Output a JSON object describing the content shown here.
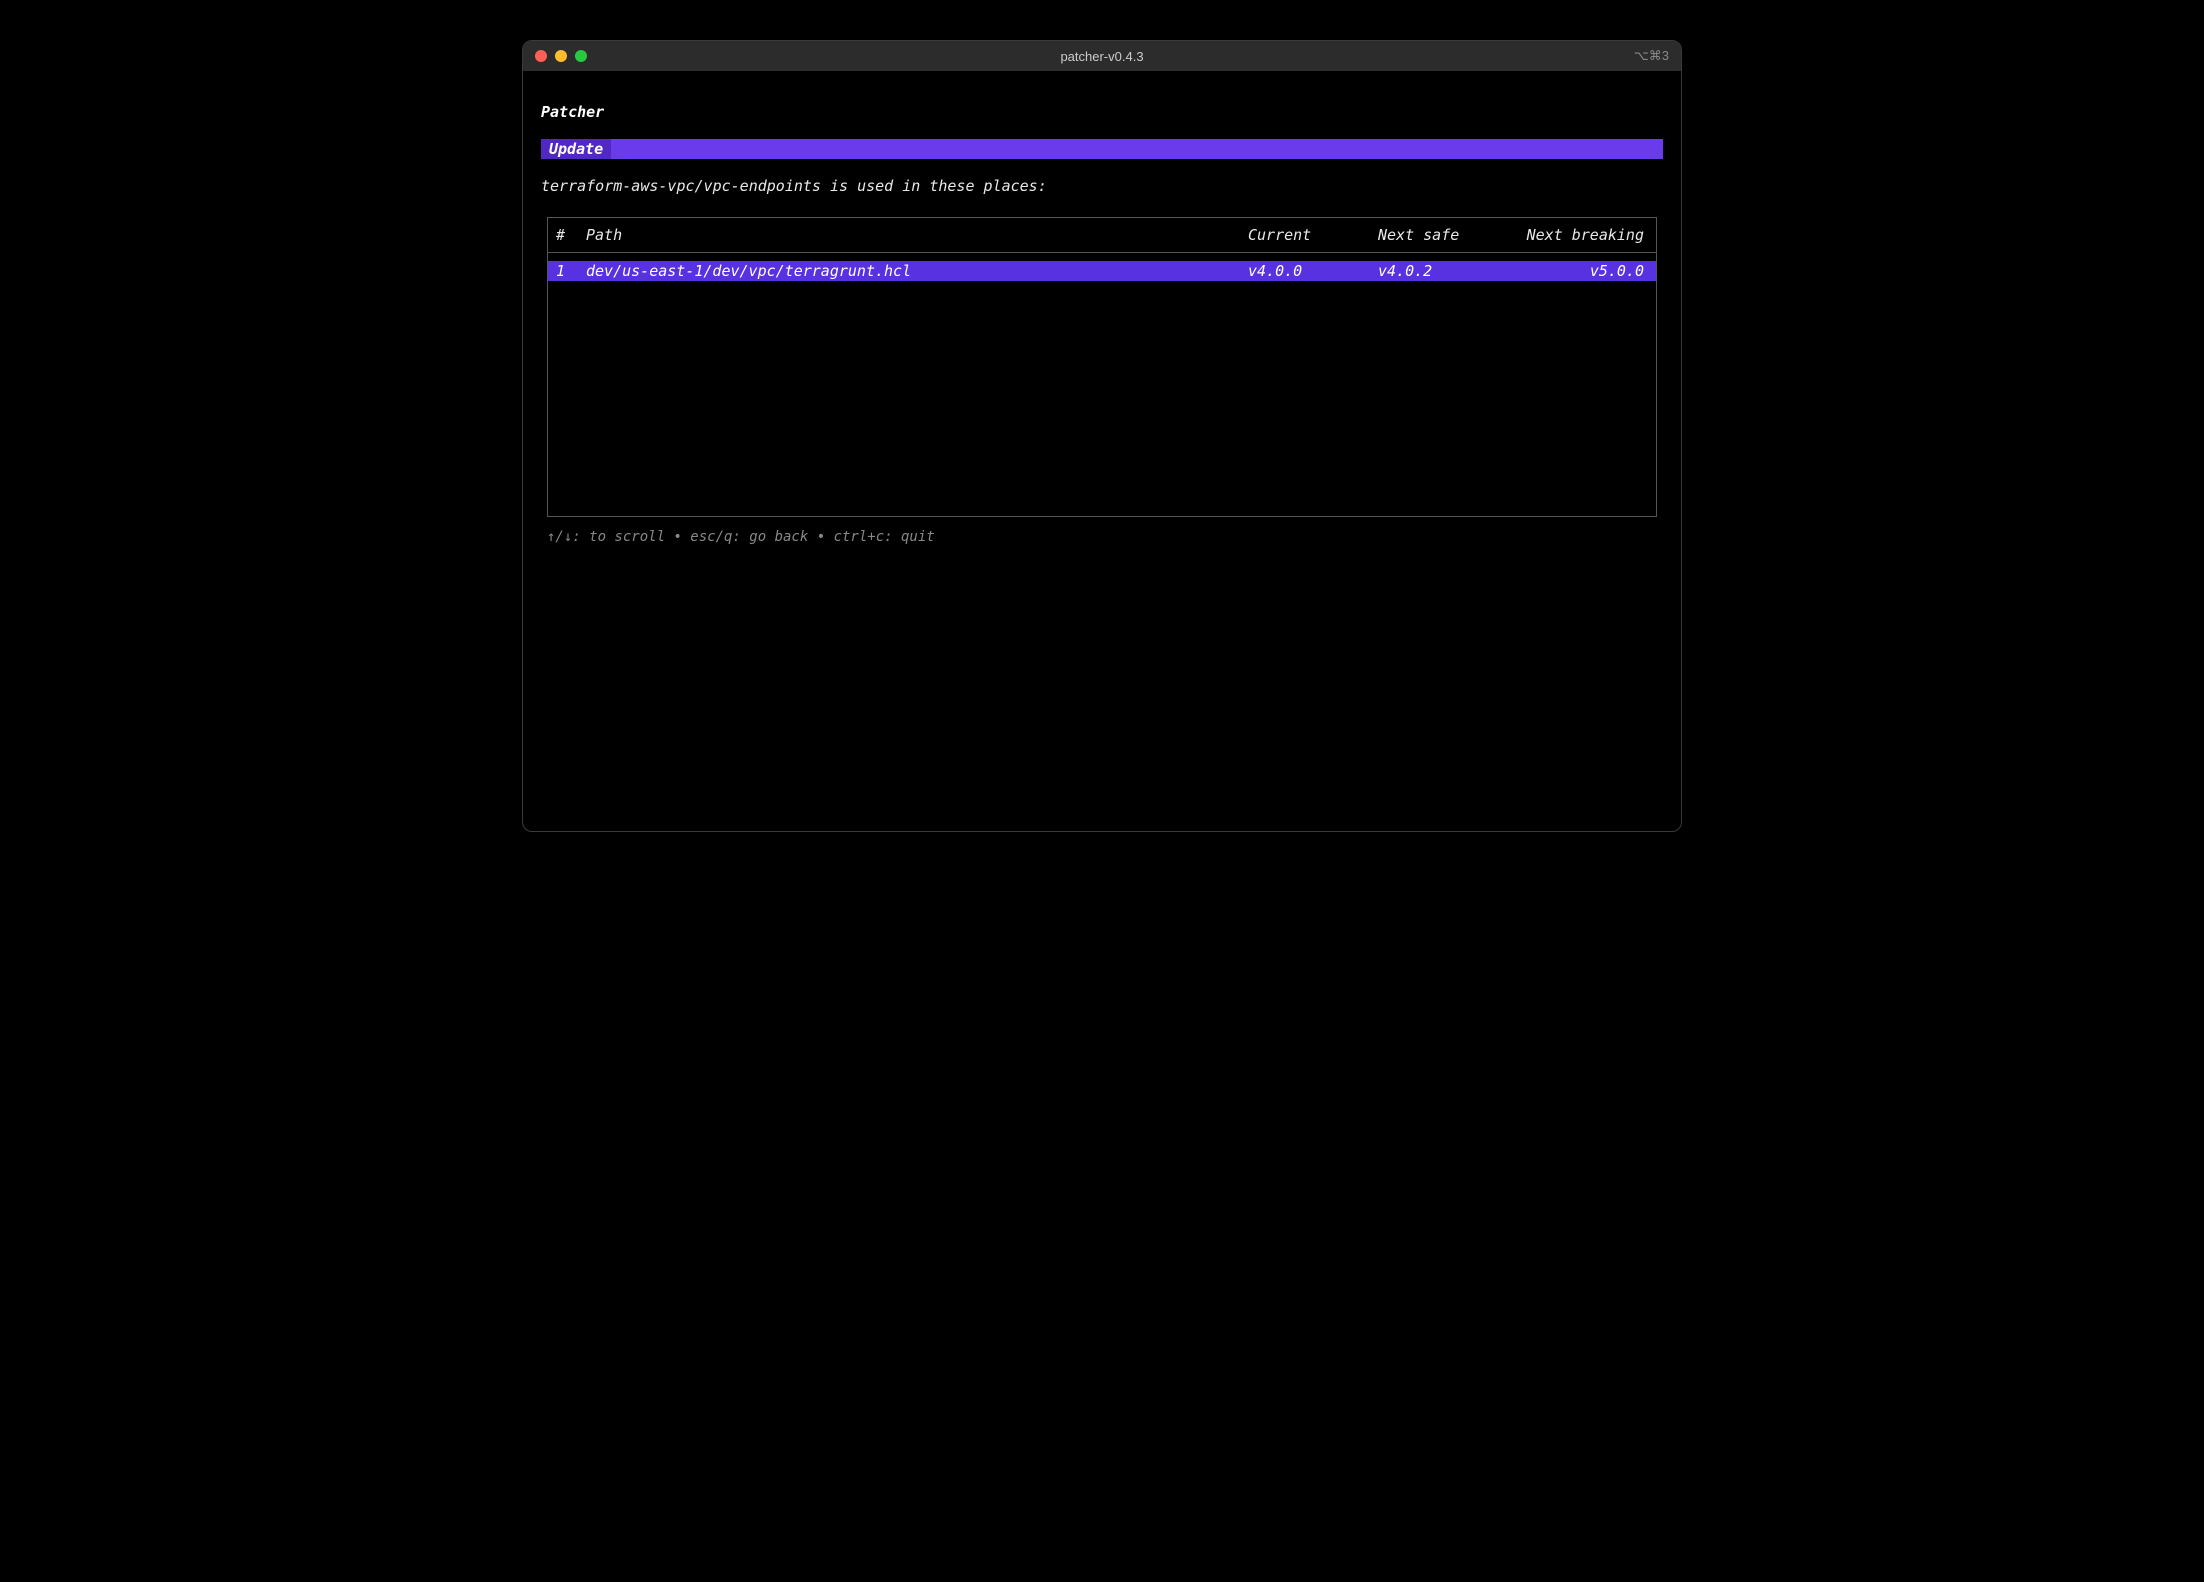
{
  "window": {
    "title": "patcher-v0.4.3",
    "titlebar_right": "⌥⌘3"
  },
  "app": {
    "title": "Patcher",
    "mode_label": "Update",
    "description": "terraform-aws-vpc/vpc-endpoints is used in these places:"
  },
  "table": {
    "columns": {
      "num": "#",
      "path": "Path",
      "current": "Current",
      "next_safe": "Next safe",
      "next_breaking": "Next breaking"
    },
    "rows": [
      {
        "num": "1",
        "path": "dev/us-east-1/dev/vpc/terragrunt.hcl",
        "current": "v4.0.0",
        "next_safe": "v4.0.2",
        "next_breaking": "v5.0.0",
        "selected": true
      }
    ]
  },
  "footer": {
    "hints": "↑/↓: to scroll • esc/q: go back • ctrl+c: quit"
  },
  "colors": {
    "background": "#000000",
    "window_border": "#3a3a3a",
    "titlebar_bg": "#2c2c2c",
    "text": "#e8e8e8",
    "accent_bg": "#6a3bea",
    "accent_label_bg": "#5128c4",
    "selected_row_bg": "#5831e0",
    "table_border": "#555555",
    "footer_text": "#888888",
    "traffic_close": "#ff5f57",
    "traffic_min": "#ffbd2e",
    "traffic_max": "#28c940"
  }
}
